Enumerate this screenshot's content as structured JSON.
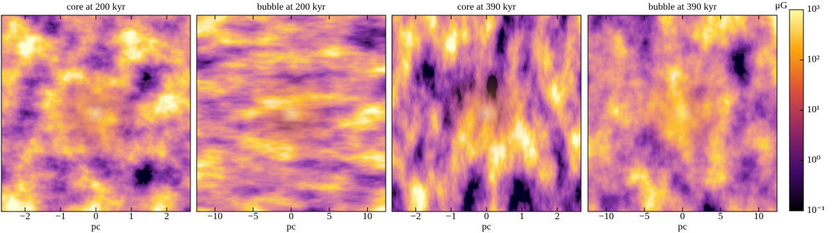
{
  "chart_data": [
    {
      "type": "heatmap",
      "title": "core at 200 kyr",
      "xlabel": "pc",
      "xlim": [
        -2.67,
        2.67
      ],
      "xticks": [
        {
          "value": -2,
          "label": "−2"
        },
        {
          "value": -1,
          "label": "−1"
        },
        0,
        1,
        2
      ]
    },
    {
      "type": "heatmap",
      "title": "bubble at 200 kyr",
      "xlabel": "pc",
      "xlim": [
        -12.4,
        12.4
      ],
      "xticks": [
        {
          "value": -10,
          "label": "−10"
        },
        {
          "value": -5,
          "label": "−5"
        },
        0,
        5,
        10
      ]
    },
    {
      "type": "heatmap",
      "title": "core at 390 kyr",
      "xlabel": "pc",
      "xlim": [
        -2.67,
        2.67
      ],
      "xticks": [
        {
          "value": -2,
          "label": "−2"
        },
        {
          "value": -1,
          "label": "−1"
        },
        0,
        1,
        2
      ]
    },
    {
      "type": "heatmap",
      "title": "bubble at 390 kyr",
      "xlabel": "pc",
      "xlim": [
        -12.4,
        12.4
      ],
      "xticks": [
        {
          "value": -10,
          "label": "−10"
        },
        {
          "value": -5,
          "label": "−5"
        },
        0,
        5,
        10
      ]
    },
    {
      "type": "colorbar",
      "label": "μG",
      "log_scale": true,
      "ylim": [
        0.1,
        1000
      ],
      "yticks": [
        {
          "value": 0.1,
          "label": "10⁻¹"
        },
        {
          "value": 1,
          "label": "10⁰"
        },
        {
          "value": 10,
          "label": "10¹"
        },
        {
          "value": 100,
          "label": "10²"
        },
        {
          "value": 1000,
          "label": "10³"
        }
      ],
      "colormap": [
        "#000004",
        "#420a68",
        "#932667",
        "#dd513a",
        "#fca50a",
        "#fcffa4"
      ]
    }
  ]
}
